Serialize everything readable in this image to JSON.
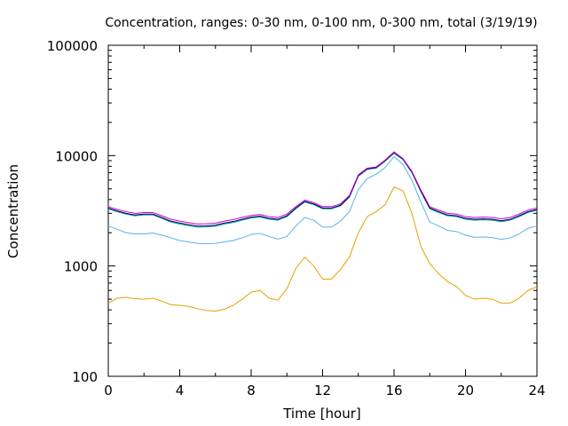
{
  "chart_data": {
    "type": "line",
    "title": "Concentration, ranges: 0-30 nm, 0-100 nm, 0-300 nm, total (3/19/19)",
    "xlabel": "Time [hour]",
    "ylabel": "Concentration",
    "xlim": [
      0,
      24
    ],
    "ylim": [
      100,
      100000
    ],
    "yscale": "log",
    "grid": false,
    "legend": "none",
    "x_ticks": [
      "0",
      "4",
      "8",
      "12",
      "16",
      "20",
      "24"
    ],
    "y_ticks": [
      "100",
      "1000",
      "10000",
      "100000"
    ],
    "x": [
      0,
      0.5,
      1,
      1.5,
      2,
      2.5,
      3,
      3.5,
      4,
      4.5,
      5,
      5.5,
      6,
      6.5,
      7,
      7.5,
      8,
      8.5,
      9,
      9.5,
      10,
      10.5,
      11,
      11.5,
      12,
      12.5,
      13,
      13.5,
      14,
      14.5,
      15,
      15.5,
      16,
      16.5,
      17,
      17.5,
      18,
      18.5,
      19,
      19.5,
      20,
      20.5,
      21,
      21.5,
      22,
      22.5,
      23,
      23.5,
      24
    ],
    "series": [
      {
        "color": "#e69f00",
        "values": [
          460,
          510,
          520,
          505,
          500,
          510,
          480,
          445,
          440,
          430,
          410,
          395,
          390,
          405,
          440,
          500,
          580,
          600,
          510,
          490,
          620,
          950,
          1200,
          1000,
          760,
          760,
          930,
          1200,
          2000,
          2800,
          3100,
          3600,
          5200,
          4800,
          3000,
          1500,
          1050,
          850,
          720,
          650,
          540,
          500,
          510,
          500,
          460,
          460,
          510,
          600,
          650
        ]
      },
      {
        "color": "#56b4e9",
        "values": [
          2300,
          2150,
          2000,
          1950,
          1950,
          1990,
          1900,
          1800,
          1700,
          1650,
          1600,
          1590,
          1600,
          1650,
          1700,
          1800,
          1930,
          1970,
          1850,
          1750,
          1850,
          2300,
          2750,
          2600,
          2250,
          2250,
          2550,
          3100,
          4900,
          6200,
          6800,
          7800,
          9800,
          8300,
          6000,
          3800,
          2500,
          2300,
          2100,
          2050,
          1900,
          1820,
          1830,
          1810,
          1740,
          1800,
          1950,
          2200,
          2300
        ]
      },
      {
        "color": "#009e73",
        "values": [
          3300,
          3100,
          2950,
          2850,
          2900,
          2900,
          2700,
          2500,
          2400,
          2320,
          2250,
          2260,
          2290,
          2400,
          2480,
          2600,
          2720,
          2780,
          2650,
          2600,
          2800,
          3300,
          3800,
          3600,
          3300,
          3300,
          3500,
          4200,
          6500,
          7500,
          7700,
          8900,
          10500,
          9200,
          7000,
          4700,
          3300,
          3050,
          2850,
          2800,
          2650,
          2600,
          2620,
          2600,
          2520,
          2600,
          2800,
          3050,
          3200
        ]
      },
      {
        "color": "#000080",
        "values": [
          3350,
          3150,
          3000,
          2900,
          2950,
          2950,
          2750,
          2550,
          2450,
          2370,
          2300,
          2310,
          2340,
          2450,
          2530,
          2650,
          2770,
          2830,
          2700,
          2650,
          2850,
          3350,
          3850,
          3650,
          3350,
          3350,
          3550,
          4250,
          6600,
          7600,
          7800,
          9000,
          10700,
          9300,
          7100,
          4800,
          3350,
          3100,
          2900,
          2850,
          2700,
          2650,
          2670,
          2650,
          2570,
          2650,
          2850,
          3100,
          3250
        ]
      },
      {
        "color": "#cc00cc",
        "values": [
          3450,
          3250,
          3100,
          3000,
          3050,
          3050,
          2850,
          2650,
          2550,
          2470,
          2400,
          2410,
          2440,
          2550,
          2630,
          2750,
          2870,
          2930,
          2800,
          2750,
          2950,
          3450,
          3950,
          3750,
          3450,
          3450,
          3650,
          4350,
          6700,
          7700,
          7900,
          9100,
          10800,
          9400,
          7200,
          4900,
          3450,
          3200,
          3000,
          2950,
          2800,
          2750,
          2770,
          2750,
          2670,
          2750,
          2950,
          3200,
          3350
        ]
      }
    ]
  }
}
